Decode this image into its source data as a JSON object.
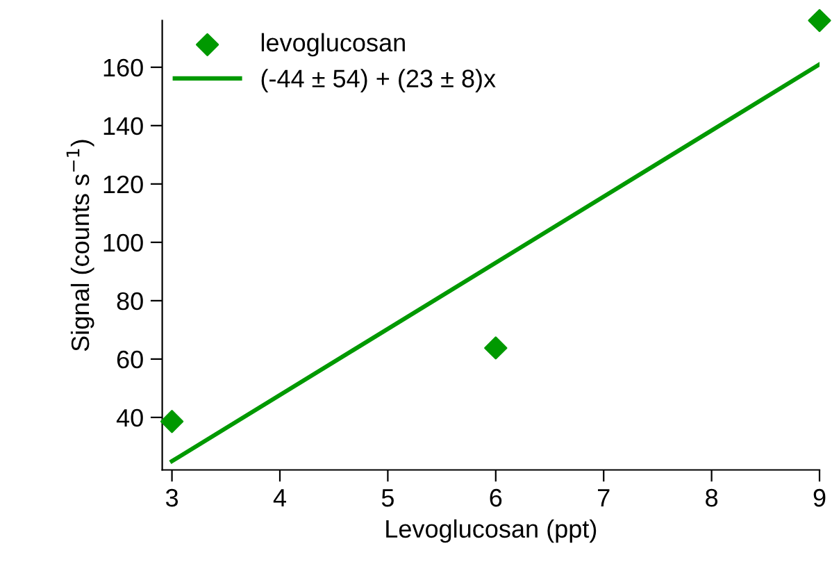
{
  "chart_data": {
    "type": "scatter",
    "xlabel": "Levoglucosan (ppt)",
    "ylabel": "Signal (counts s$^{−1}$)",
    "xlim": [
      2.91,
      9
    ],
    "ylim": [
      22,
      176
    ],
    "xticks": [
      3,
      4,
      5,
      6,
      7,
      8,
      9
    ],
    "yticks": [
      40,
      60,
      80,
      100,
      120,
      140,
      160
    ],
    "grid": false,
    "legend": "top left",
    "series": [
      {
        "name": "levoglucosan",
        "marker": "diamond",
        "color": "#009900",
        "x": [
          3,
          6,
          9
        ],
        "values": [
          38.6,
          63.8,
          176
        ]
      },
      {
        "name": "(-44 ± 54) + (23 ± 8)x",
        "type": "line",
        "marker": "none",
        "line_style": "solid",
        "color": "#009900",
        "x": [
          3,
          9
        ],
        "values": [
          25,
          161
        ]
      }
    ]
  }
}
